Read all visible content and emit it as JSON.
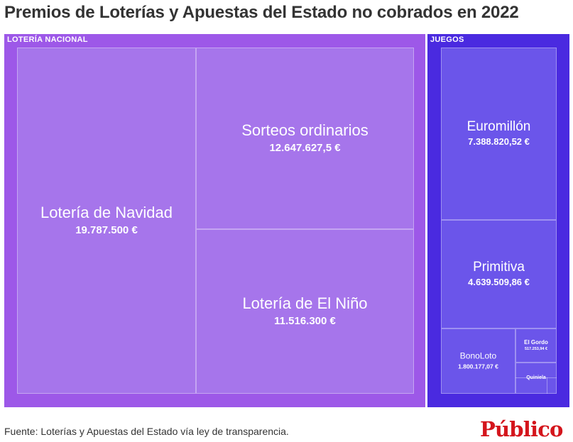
{
  "title": "Premios de Loterías y Apuestas del Estado no cobrados en 2022",
  "source": "Fuente: Loterías y Apuestas del Estado vía ley de transparencia.",
  "brand": "Público",
  "colors": {
    "loteria_group": "#9d58e8",
    "loteria_cell": "#a675eb",
    "juegos_group": "#4a2ae0",
    "juegos_cell": "#6b55ea",
    "brand": "#d4151c"
  },
  "chart_data": {
    "type": "treemap",
    "title": "Premios de Loterías y Apuestas del Estado no cobrados en 2022",
    "unit": "€",
    "groups": [
      {
        "name": "LOTERÍA NACIONAL",
        "items": [
          {
            "name": "Lotería de Navidad",
            "value": 19787500,
            "label": "19.787.500 €"
          },
          {
            "name": "Sorteos ordinarios",
            "value": 12647627.5,
            "label": "12.647.627,5 €"
          },
          {
            "name": "Lotería de El Niño",
            "value": 11516300,
            "label": "11.516.300 €"
          }
        ]
      },
      {
        "name": "JUEGOS",
        "items": [
          {
            "name": "Euromillón",
            "value": 7388820.52,
            "label": "7.388.820,52 €"
          },
          {
            "name": "Primitiva",
            "value": 4639509.86,
            "label": "4.639.509,86 €"
          },
          {
            "name": "BonoLoto",
            "value": 1800177.07,
            "label": "1.800.177,07 €"
          },
          {
            "name": "El Gordo",
            "value": 517253.94,
            "label": "517.253,94 €"
          },
          {
            "name": "Quiniela",
            "value": null,
            "label": ""
          }
        ]
      }
    ]
  }
}
